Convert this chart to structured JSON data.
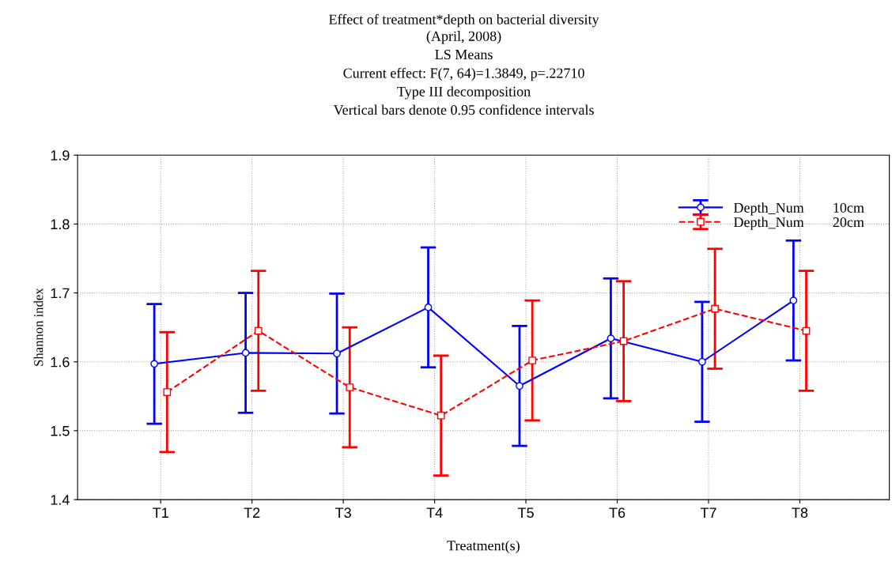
{
  "chart_data": {
    "type": "line",
    "title": "Effect of treatment*depth on bacterial diversity",
    "subtitle": "(April, 2008)\nLS Means\nCurrent effect: F(7, 64)=1.3849, p=.22710\nType III decomposition\nVertical bars denote 0.95 confidence intervals",
    "xlabel": "Treatment(s)",
    "ylabel": "Shannon index",
    "categories": [
      "T1",
      "T2",
      "T3",
      "T4",
      "T5",
      "T6",
      "T7",
      "T8"
    ],
    "series": [
      {
        "name": "Depth_Num        10cm",
        "color": "#0000ff",
        "marker": "circle",
        "line_style": "solid",
        "values": [
          1.597,
          1.613,
          1.612,
          1.679,
          1.565,
          1.634,
          1.6,
          1.689
        ],
        "errors": [
          0.087,
          0.087,
          0.087,
          0.087,
          0.087,
          0.087,
          0.087,
          0.087
        ]
      },
      {
        "name": "Depth_Num        20cm",
        "color": "#ff0000",
        "marker": "square",
        "line_style": "dashed",
        "values": [
          1.556,
          1.645,
          1.563,
          1.522,
          1.602,
          1.63,
          1.677,
          1.645
        ],
        "errors": [
          0.087,
          0.087,
          0.087,
          0.087,
          0.087,
          0.087,
          0.087,
          0.087
        ]
      }
    ],
    "ylim": [
      1.4,
      1.9
    ],
    "yticks": [
      1.4,
      1.5,
      1.6,
      1.7,
      1.8,
      1.9
    ],
    "grid": true,
    "legend": "top right"
  }
}
